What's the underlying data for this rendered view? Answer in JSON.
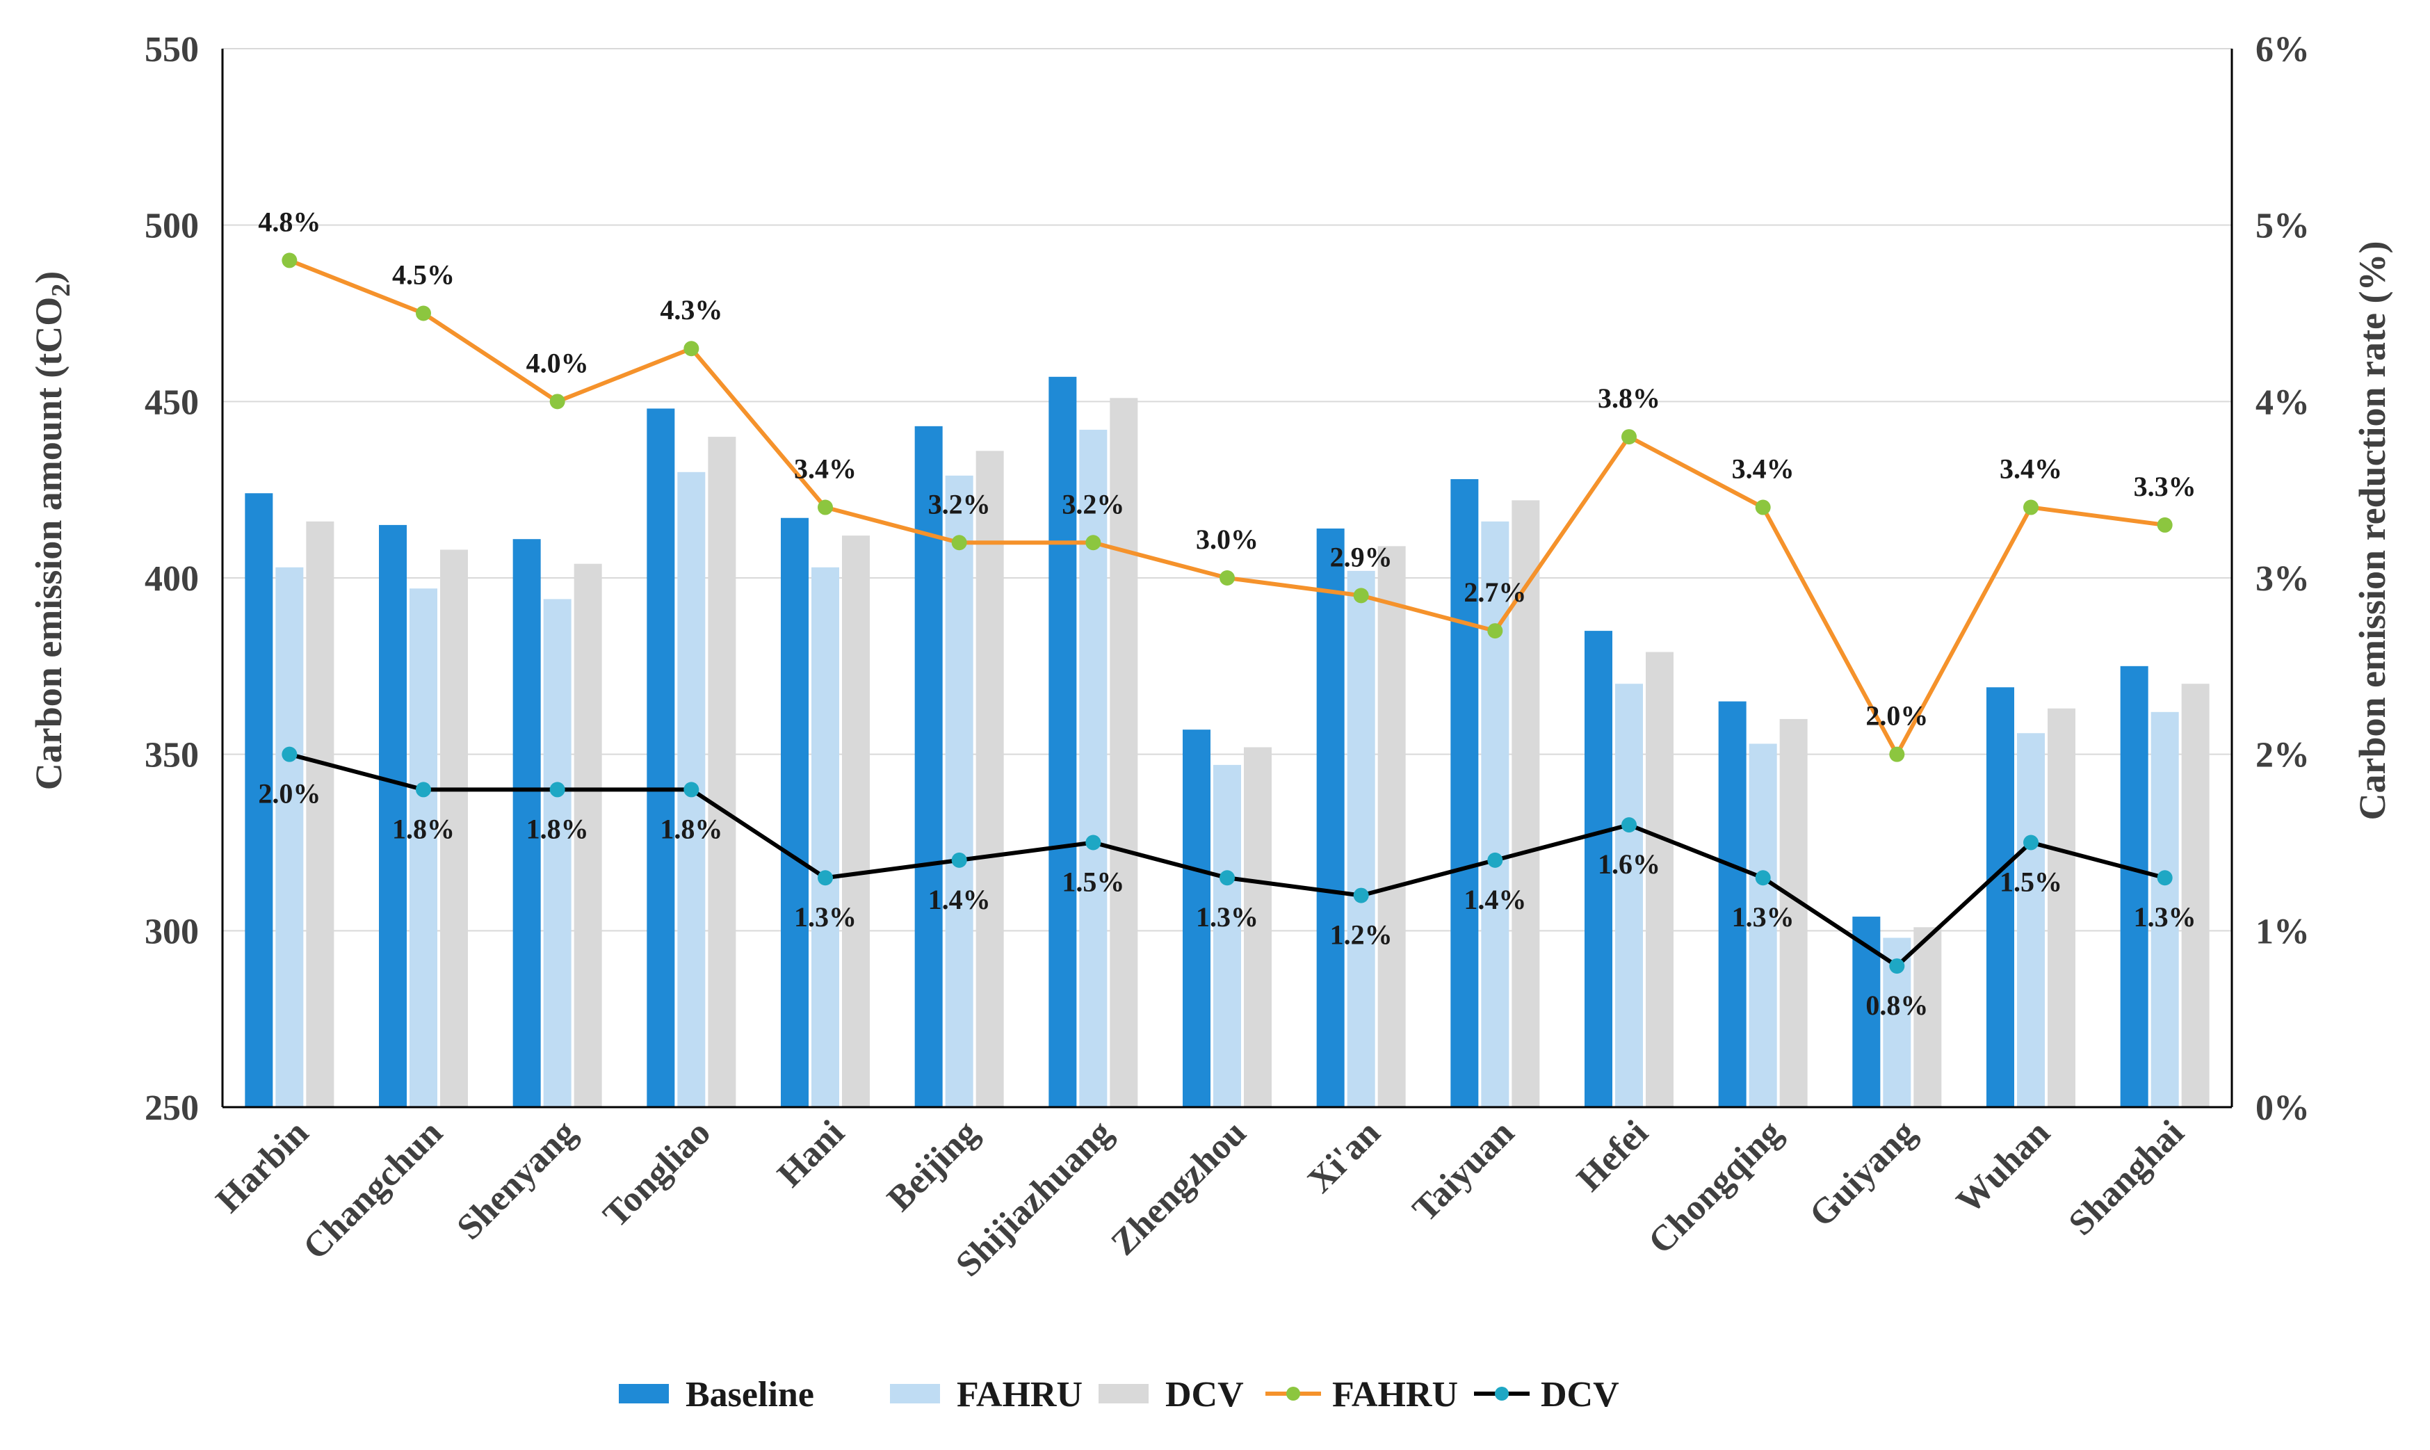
{
  "chart_data": {
    "type": "bar",
    "categories": [
      "Harbin",
      "Changchun",
      "Shenyang",
      "Tongliao",
      "Hani",
      "Beijing",
      "Shijiazhuang",
      "Zhengzhou",
      "Xi'an",
      "Taiyuan",
      "Hefei",
      "Chongqing",
      "Guiyang",
      "Wuhan",
      "Shanghai"
    ],
    "series": [
      {
        "name": "Baseline",
        "kind": "bar",
        "axis": "left",
        "color": "#1f8ad6",
        "values": [
          424,
          415,
          411,
          448,
          417,
          443,
          457,
          357,
          414,
          428,
          385,
          365,
          304,
          369,
          375
        ]
      },
      {
        "name": "FAHRU",
        "kind": "bar",
        "axis": "left",
        "color": "#bfdcf3",
        "values": [
          403,
          397,
          394,
          430,
          403,
          429,
          442,
          347,
          402,
          416,
          370,
          353,
          298,
          356,
          362
        ]
      },
      {
        "name": "DCV",
        "kind": "bar",
        "axis": "left",
        "color": "#d9d9d9",
        "values": [
          416,
          408,
          404,
          440,
          412,
          436,
          451,
          352,
          409,
          422,
          379,
          360,
          301,
          363,
          370
        ]
      },
      {
        "name": "FAHRU",
        "kind": "line",
        "axis": "right",
        "color": "#f5922b",
        "marker_color": "#8cc63f",
        "values": [
          4.8,
          4.5,
          4.0,
          4.3,
          3.4,
          3.2,
          3.2,
          3.0,
          2.9,
          2.7,
          3.8,
          3.4,
          2.0,
          3.4,
          3.3
        ],
        "labels": [
          "4.8%",
          "4.5%",
          "4.0%",
          "4.3%",
          "3.4%",
          "3.2%",
          "3.2%",
          "3.0%",
          "2.9%",
          "2.7%",
          "3.8%",
          "3.4%",
          "2.0%",
          "3.4%",
          "3.3%"
        ]
      },
      {
        "name": "DCV",
        "kind": "line",
        "axis": "right",
        "color": "#000000",
        "marker_color": "#1ea7c4",
        "values": [
          2.0,
          1.8,
          1.8,
          1.8,
          1.3,
          1.4,
          1.5,
          1.3,
          1.2,
          1.4,
          1.6,
          1.3,
          0.8,
          1.5,
          1.3
        ],
        "labels": [
          "2.0%",
          "1.8%",
          "1.8%",
          "1.8%",
          "1.3%",
          "1.4%",
          "1.5%",
          "1.3%",
          "1.2%",
          "1.4%",
          "1.6%",
          "1.3%",
          "0.8%",
          "1.5%",
          "1.3%"
        ]
      }
    ],
    "ylabel": "Carbon emission amount (tCO",
    "ylabel_sub": "2",
    "ylabel_close": ")",
    "y2label": "Carbon emission reduction rate (%)",
    "ylim": [
      250,
      550
    ],
    "yticks": [
      "250",
      "300",
      "350",
      "400",
      "450",
      "500",
      "550"
    ],
    "y2lim": [
      0,
      6
    ],
    "y2ticks": [
      "0%",
      "1%",
      "2%",
      "3%",
      "4%",
      "5%",
      "6%"
    ],
    "grid": true,
    "legend_position": "bottom"
  }
}
